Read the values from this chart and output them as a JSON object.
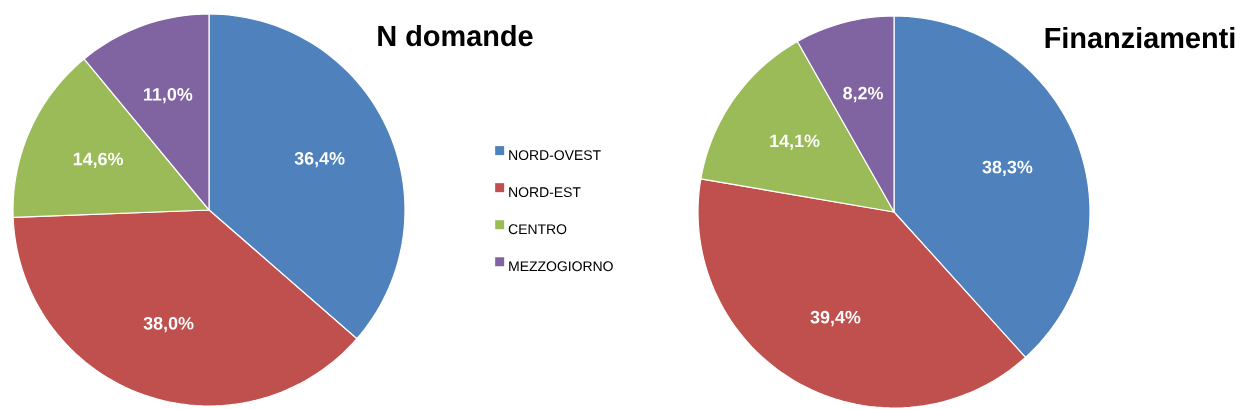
{
  "chart_data": [
    {
      "type": "pie",
      "title": "N domande",
      "categories": [
        "NORD-OVEST",
        "NORD-EST",
        "CENTRO",
        "MEZZOGIORNO"
      ],
      "values": [
        36.4,
        38.0,
        14.6,
        11.0
      ],
      "colors": [
        "#4f81bd",
        "#c0504d",
        "#9bbb59",
        "#8064a2"
      ],
      "value_labels": [
        "36,4%",
        "38,0%",
        "14,6%",
        "11,0%"
      ],
      "legend": "right"
    },
    {
      "type": "pie",
      "title": "Finanziamenti",
      "categories": [
        null,
        null,
        null,
        null
      ],
      "values": [
        38.3,
        39.4,
        14.1,
        8.2
      ],
      "colors": [
        "#4f81bd",
        "#c0504d",
        "#9bbb59",
        "#8064a2"
      ],
      "value_labels": [
        "38,3%",
        "39,4%",
        "14,1%",
        "8,2%"
      ]
    }
  ]
}
